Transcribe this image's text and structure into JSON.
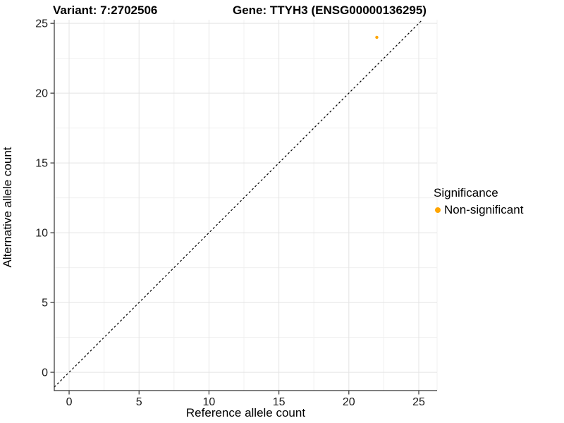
{
  "chart_data": {
    "type": "scatter",
    "title_left": "Variant: 7:2702506",
    "title_right": "Gene: TTYH3 (ENSG00000136295)",
    "xlabel": "Reference allele count",
    "ylabel": "Alternative allele count",
    "xticks": [
      0,
      5,
      10,
      15,
      20,
      25
    ],
    "yticks": [
      0,
      5,
      10,
      15,
      20,
      25
    ],
    "xlim": [
      -1.06,
      26.31
    ],
    "ylim": [
      -1.31,
      25.26
    ],
    "grid": true,
    "points": [
      {
        "x": 22,
        "y": 24,
        "series": "Non-significant",
        "color": "#FFA500"
      }
    ],
    "reference_line": {
      "type": "identity",
      "style": "dashed",
      "color": "#000000"
    },
    "legend": {
      "title": "Significance",
      "position": "right",
      "items": [
        {
          "label": "Non-significant",
          "color": "#FFA500"
        }
      ]
    },
    "colors": {
      "major_grid": "#E4E4E4",
      "minor_grid": "#F0F0F0",
      "axis_line": "#333333",
      "tick_text": "#1A1A1A",
      "panel_background": "#FFFFFF"
    }
  }
}
